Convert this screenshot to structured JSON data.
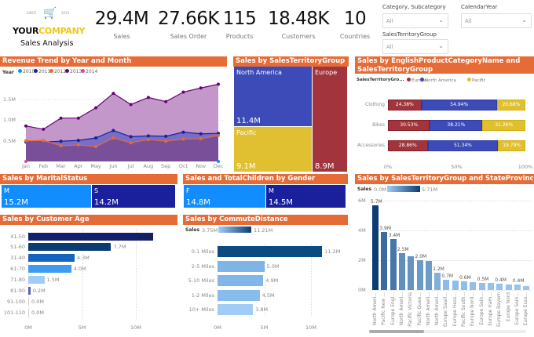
{
  "logo": {
    "since": "SINCE",
    "year": "2010",
    "brand_a": "YOUR",
    "brand_b": "COMPANY",
    "subtitle": "Sales Analysis"
  },
  "kpis": [
    {
      "value": "29.4M",
      "label": "Sales"
    },
    {
      "value": "27.66K",
      "label": "Sales Order"
    },
    {
      "value": "115",
      "label": "Products"
    },
    {
      "value": "18.48K",
      "label": "Customers"
    },
    {
      "value": "10",
      "label": "Countries"
    }
  ],
  "slicers": [
    {
      "label": "Category, Subcategory",
      "value": "All"
    },
    {
      "label": "CalendarYear",
      "value": "All"
    },
    {
      "label": "SalesTerritoryGroup",
      "value": "All"
    }
  ],
  "colors": {
    "header": "#e66c37",
    "y2010": "#118dff",
    "y2011": "#12239e",
    "y2012": "#e66c37",
    "y2013": "#6b007b",
    "y2014": "#e044a7",
    "europe": "#a1343c",
    "north_america": "#3c4bb8",
    "pacific": "#e0c030"
  },
  "chart_data": [
    {
      "type": "area",
      "title": "Revenue Trend by Year and Month",
      "legend_title": "Year",
      "legend": "top-left",
      "x": [
        "Jan",
        "Feb",
        "Mar",
        "Apr",
        "May",
        "Jun",
        "Jul",
        "Aug",
        "Sep",
        "Oct",
        "Nov",
        "Dec"
      ],
      "yticks": [
        "0.5M",
        "1.0M",
        "1.5M"
      ],
      "ylim": [
        0,
        2.0
      ],
      "series": [
        {
          "name": "2010",
          "values": [
            null,
            null,
            null,
            null,
            null,
            null,
            null,
            null,
            null,
            null,
            null,
            0
          ]
        },
        {
          "name": "2011",
          "values": [
            0.47,
            0.47,
            0.49,
            0.51,
            0.57,
            0.75,
            0.6,
            0.62,
            0.61,
            0.71,
            0.67,
            0.68
          ]
        },
        {
          "name": "2012",
          "values": [
            0.5,
            0.51,
            0.38,
            0.4,
            0.36,
            0.57,
            0.45,
            0.53,
            0.49,
            0.54,
            0.55,
            0.63
          ]
        },
        {
          "name": "2013",
          "values": [
            0.86,
            0.78,
            1.05,
            1.05,
            1.3,
            1.65,
            1.38,
            1.55,
            1.45,
            1.68,
            1.78,
            1.87
          ]
        },
        {
          "name": "2014",
          "values": [
            0,
            null,
            null,
            null,
            null,
            null,
            null,
            null,
            null,
            null,
            null,
            null
          ]
        }
      ]
    },
    {
      "type": "treemap",
      "title": "Sales by SalesTerritoryGroup",
      "items": [
        {
          "name": "North America",
          "value": "11.4M"
        },
        {
          "name": "Pacific",
          "value": "9.1M"
        },
        {
          "name": "Europe",
          "value": "8.9M"
        }
      ]
    },
    {
      "type": "bar",
      "stacked": "100%",
      "title": "Sales by EnglishProductCategoryName and SalesTerritoryGroup",
      "legend_title": "SalesTerritoryGro...",
      "categories": [
        "Clothing",
        "Bikes",
        "Accessories"
      ],
      "xticks": [
        "0%",
        "50%",
        "100%"
      ],
      "series": [
        {
          "name": "Europe",
          "values": [
            24.38,
            30.53,
            28.86
          ]
        },
        {
          "name": "North America",
          "values": [
            54.94,
            38.21,
            51.34
          ]
        },
        {
          "name": "Pacific",
          "values": [
            20.68,
            31.26,
            19.79
          ]
        }
      ]
    },
    {
      "type": "treemap",
      "title": "Sales by MaritalStatus",
      "items": [
        {
          "name": "M",
          "value": "15.2M"
        },
        {
          "name": "S",
          "value": "14.2M"
        }
      ]
    },
    {
      "type": "treemap",
      "title": "Sales and TotalChildren by Gender",
      "items": [
        {
          "name": "F",
          "value": "14.8M"
        },
        {
          "name": "M",
          "value": "14.5M"
        }
      ]
    },
    {
      "type": "bar",
      "title": "Sales by Customer Age",
      "categories": [
        "41-50",
        "51-60",
        "31-40",
        "61-70",
        "71-80",
        "81-90",
        "91-100",
        "101-110"
      ],
      "values": [
        11.6,
        7.7,
        4.3,
        4.0,
        1.5,
        0.2,
        0.0,
        0.0
      ],
      "labels": [
        "11.6M",
        "7.7M",
        "4.3M",
        "4.0M",
        "1.5M",
        "0.2M",
        "0.0M",
        "0.0M"
      ],
      "xticks": [
        "0M",
        "5M",
        "10M"
      ],
      "xlim": [
        0,
        13
      ]
    },
    {
      "type": "bar",
      "title": "Sales by CommuteDistance",
      "legend_title": "Sales",
      "legend_min": "3.75M",
      "legend_max": "11.21M",
      "categories": [
        "0-1 Miles",
        "2-5 Miles",
        "5-10 Miles",
        "1-2 Miles",
        "10+ Miles"
      ],
      "values": [
        11.2,
        5.0,
        4.9,
        4.5,
        3.8
      ],
      "labels": [
        "11.2M",
        "5.0M",
        "4.9M",
        "4.5M",
        "3.8M"
      ],
      "xticks": [
        "0M",
        "5M",
        "10M"
      ],
      "xlim": [
        0,
        13
      ]
    },
    {
      "type": "bar",
      "title": "Sales by SalesTerritoryGroup and StateProvinceName",
      "legend_title": "Sales",
      "legend_min": "0.0M",
      "legend_max": "5.71M",
      "categories": [
        "North Ameri...",
        "Pacific New ...",
        "Europe Engl...",
        "North Ameri...",
        "Pacific Victoria",
        "Pacific Quee...",
        "North Ameri...",
        "North Ameri...",
        "Europe Saarl...",
        "Europe Hess...",
        "Pacific South...",
        "Europe Nord...",
        "Europe Sein...",
        "Europe Ham...",
        "Europe Bayern",
        "Europe Nord",
        "Europe Sein...",
        "Europe Esso..."
      ],
      "values": [
        5.7,
        3.9,
        3.4,
        2.45,
        2.25,
        2.0,
        1.95,
        1.15,
        0.7,
        0.65,
        0.6,
        0.55,
        0.5,
        0.45,
        0.4,
        0.38,
        0.37,
        0.27
      ],
      "labels": [
        "5.7M",
        "3.9M",
        "3.4M",
        "2.5M",
        null,
        "2.0M",
        null,
        "1.2M",
        "0.7M",
        null,
        "0.6M",
        null,
        "0.5M",
        null,
        "0.4M",
        null,
        "0.4M",
        null
      ],
      "yticks": [
        "0M",
        "2M",
        "4M",
        "6M"
      ],
      "ylim": [
        0,
        6
      ]
    }
  ]
}
